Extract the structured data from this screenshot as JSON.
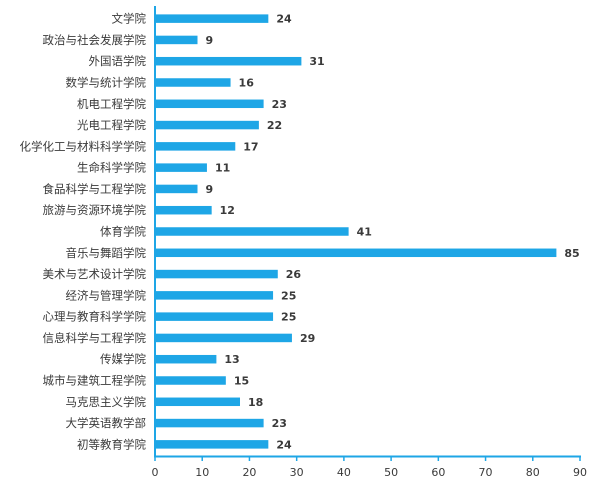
{
  "chart_data": {
    "type": "bar",
    "orientation": "horizontal",
    "categories": [
      "文学院",
      "政治与社会发展学院",
      "外国语学院",
      "数学与统计学院",
      "机电工程学院",
      "光电工程学院",
      "化学化工与材料科学学院",
      "生命科学学院",
      "食品科学与工程学院",
      "旅游与资源环境学院",
      "体育学院",
      "音乐与舞蹈学院",
      "美术与艺术设计学院",
      "经济与管理学院",
      "心理与教育科学学院",
      "信息科学与工程学院",
      "传媒学院",
      "城市与建筑工程学院",
      "马克思主义学院",
      "大学英语教学部",
      "初等教育学院"
    ],
    "values": [
      24,
      9,
      31,
      16,
      23,
      22,
      17,
      11,
      9,
      12,
      41,
      85,
      26,
      25,
      25,
      29,
      13,
      15,
      18,
      23,
      24
    ],
    "xlim": [
      0,
      90
    ],
    "xticks": [
      0,
      10,
      20,
      30,
      40,
      50,
      60,
      70,
      80,
      90
    ],
    "title": "",
    "xlabel": "",
    "ylabel": "",
    "grid": false,
    "data_labels": true,
    "bar_color": "#1ea6e6",
    "axis_color": "#1ea6e6"
  }
}
